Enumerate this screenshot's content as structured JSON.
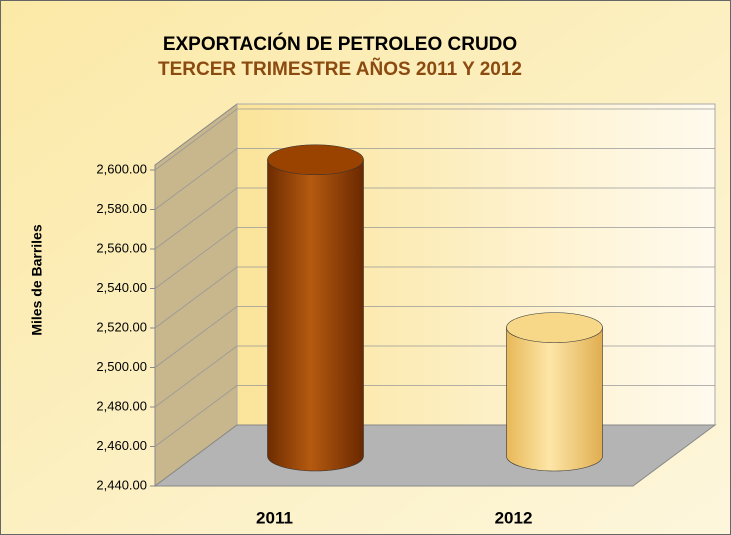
{
  "chart_data": {
    "type": "bar",
    "title": "EXPORTACIÓN DE PETROLEO CRUDO",
    "subtitle": "TERCER TRIMESTRE AÑOS 2011 Y 2012",
    "ylabel": "Miles de Barriles",
    "categories": [
      "2011",
      "2012"
    ],
    "values": [
      2590,
      2505
    ],
    "colors": [
      "#9a4200",
      "#f7d888"
    ],
    "ylim": [
      2440,
      2600
    ],
    "yticks": [
      {
        "value": 2440,
        "label": "2,440.00"
      },
      {
        "value": 2460,
        "label": "2,460.00"
      },
      {
        "value": 2480,
        "label": "2,480.00"
      },
      {
        "value": 2500,
        "label": "2,500.00"
      },
      {
        "value": 2520,
        "label": "2,520.00"
      },
      {
        "value": 2540,
        "label": "2,540.00"
      },
      {
        "value": 2560,
        "label": "2,560.00"
      },
      {
        "value": 2580,
        "label": "2,580.00"
      },
      {
        "value": 2600,
        "label": "2,600.00"
      }
    ],
    "grid": true
  }
}
